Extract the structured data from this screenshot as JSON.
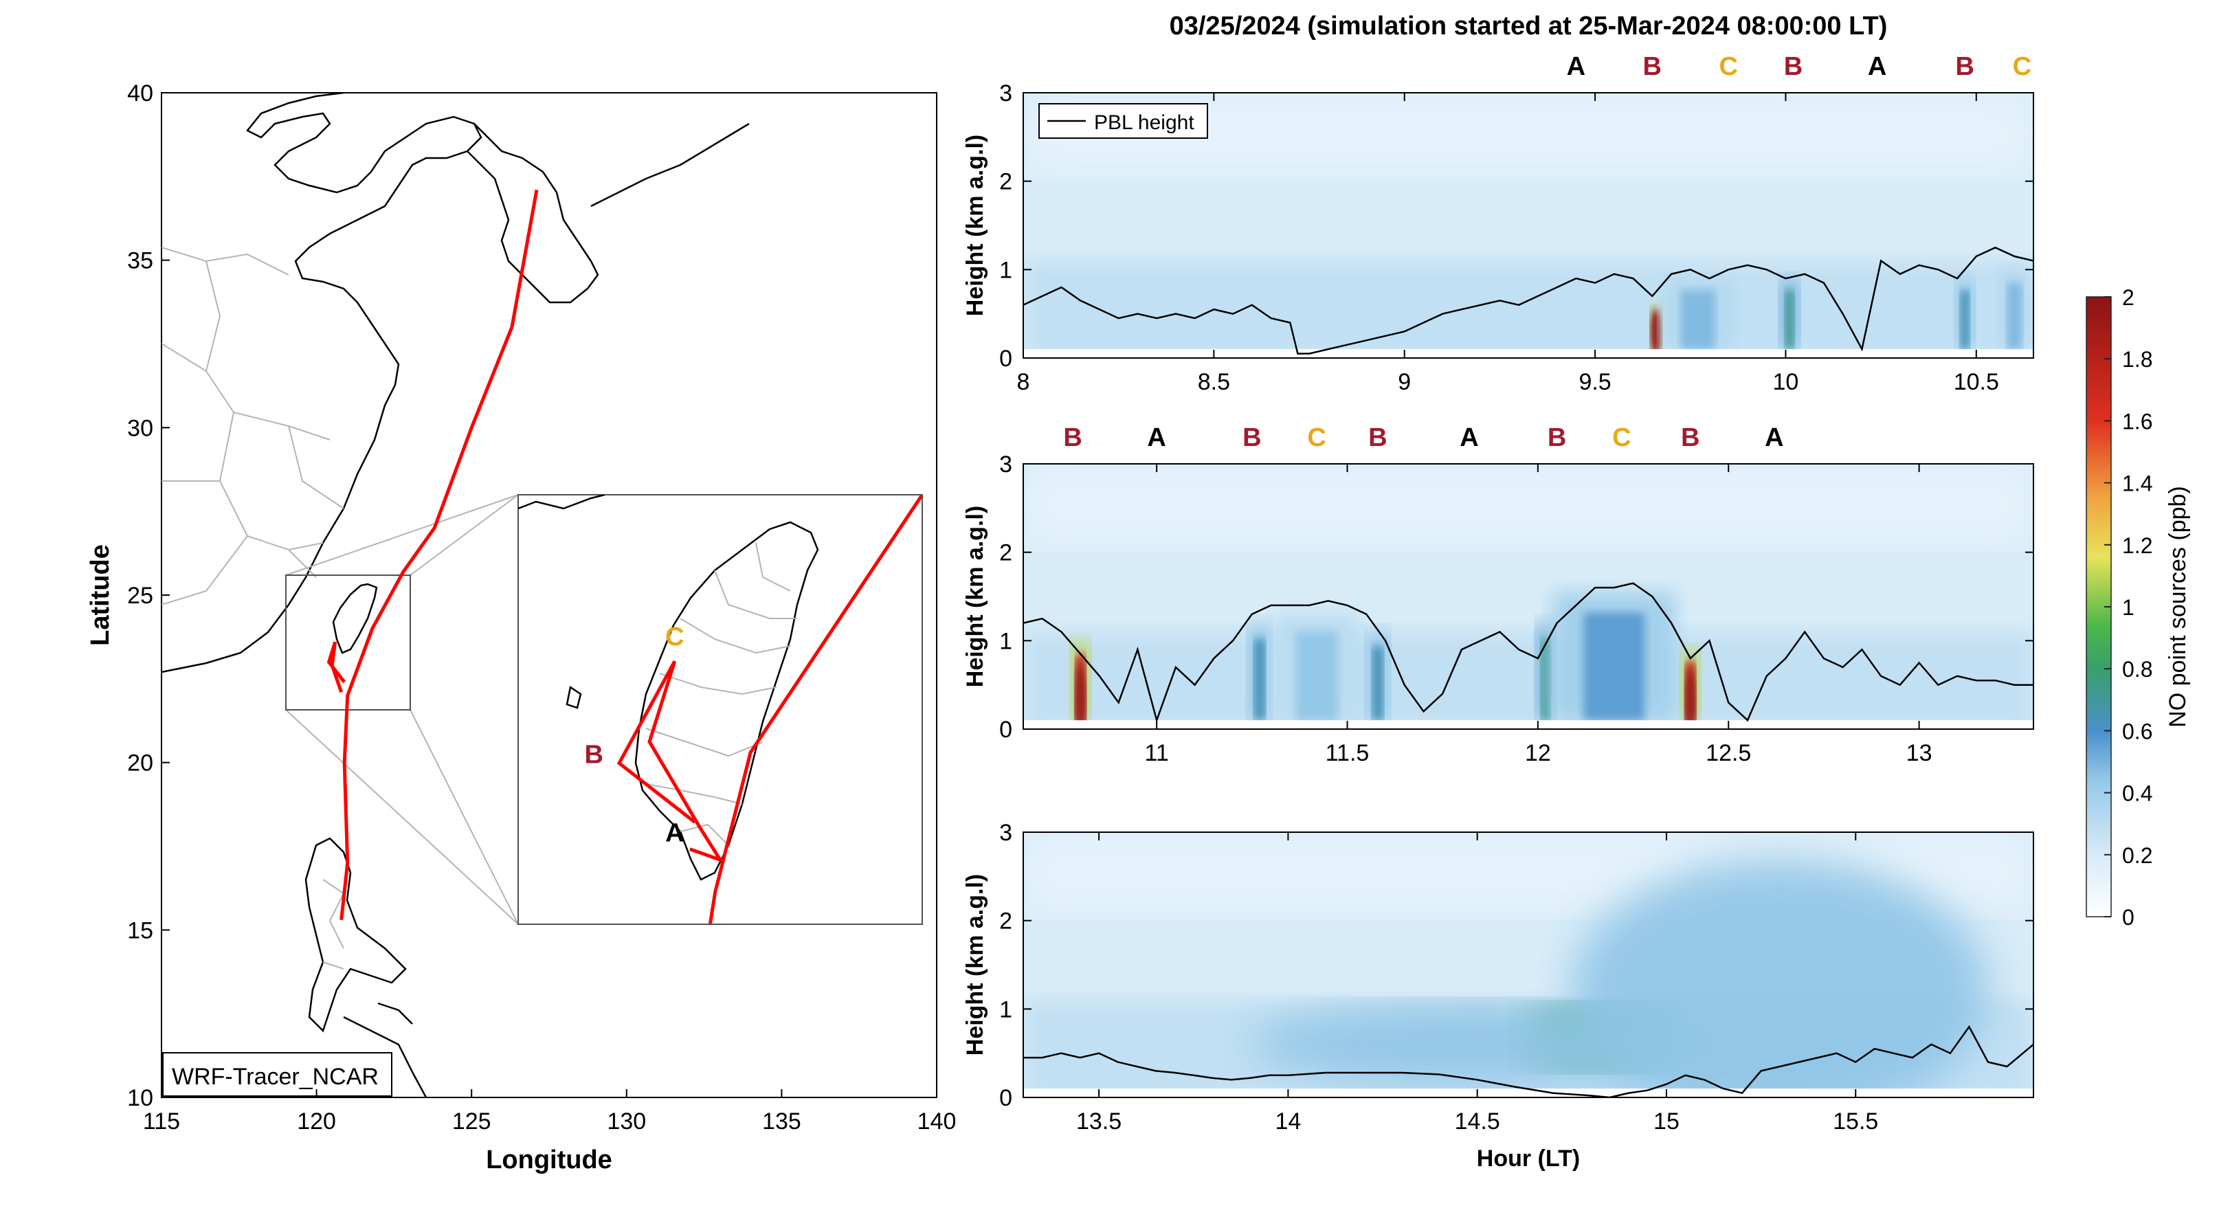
{
  "title": "03/25/2024 (simulation started at 25-Mar-2024 08:00:00 LT)",
  "colors": {
    "letter_A": "#000000",
    "letter_B": "#a31a2c",
    "letter_C": "#e8a815",
    "track": "#ff0000",
    "pbl": "#000000"
  },
  "map": {
    "xlabel": "Longitude",
    "ylabel": "Latitude",
    "xticks": [
      "115",
      "120",
      "125",
      "130",
      "135",
      "140"
    ],
    "yticks": [
      "10",
      "15",
      "20",
      "25",
      "30",
      "35",
      "40"
    ],
    "xlim": [
      115,
      140
    ],
    "ylim": [
      10,
      40
    ],
    "model_label": "WRF-Tracer_NCAR",
    "track_main": [
      [
        127.1,
        37.1
      ],
      [
        126.3,
        33.0
      ],
      [
        125.0,
        30.0
      ],
      [
        123.8,
        27.0
      ],
      [
        122.8,
        25.7
      ],
      [
        121.8,
        24.0
      ],
      [
        121.0,
        22.0
      ],
      [
        120.9,
        20.0
      ],
      [
        121.0,
        17.0
      ],
      [
        120.8,
        15.3
      ]
    ],
    "track_taiwan_loop": [
      [
        120.9,
        22.4
      ],
      [
        120.4,
        23.0
      ],
      [
        120.6,
        23.6
      ],
      [
        120.5,
        22.9
      ],
      [
        120.8,
        22.1
      ]
    ],
    "inset_region": {
      "lon": [
        119.0,
        123.0
      ],
      "lat": [
        21.5,
        25.5
      ]
    },
    "inset_labels": [
      {
        "id": "A",
        "text": "A",
        "lon": 120.55,
        "lat": 22.27
      },
      {
        "id": "B",
        "text": "B",
        "lon": 119.75,
        "lat": 23.0
      },
      {
        "id": "C",
        "text": "C",
        "lon": 120.55,
        "lat": 24.1
      }
    ]
  },
  "chart_data": [
    {
      "type": "heatmap",
      "panel": "top",
      "xlim": [
        8.0,
        10.65
      ],
      "ylim": [
        0,
        3
      ],
      "xticks": [
        "8",
        "8.5",
        "9",
        "9.5",
        "10",
        "10.5"
      ],
      "yticks": [
        "0",
        "1",
        "2",
        "3"
      ],
      "ylabel": "Height (km a.g.l)",
      "legend": "PBL height",
      "site_labels": [
        {
          "text": "A",
          "x": 9.45
        },
        {
          "text": "B",
          "x": 9.65
        },
        {
          "text": "C",
          "x": 9.85
        },
        {
          "text": "B",
          "x": 10.02
        },
        {
          "text": "A",
          "x": 10.24
        },
        {
          "text": "B",
          "x": 10.47
        },
        {
          "text": "C",
          "x": 10.62
        }
      ],
      "pbl_x": [
        8.0,
        8.05,
        8.1,
        8.15,
        8.2,
        8.25,
        8.3,
        8.35,
        8.4,
        8.45,
        8.5,
        8.55,
        8.6,
        8.65,
        8.7,
        8.72,
        8.75,
        8.8,
        8.85,
        8.9,
        8.95,
        9.0,
        9.05,
        9.1,
        9.15,
        9.2,
        9.25,
        9.3,
        9.35,
        9.4,
        9.45,
        9.5,
        9.55,
        9.6,
        9.65,
        9.7,
        9.75,
        9.8,
        9.85,
        9.9,
        9.95,
        10.0,
        10.05,
        10.1,
        10.15,
        10.2,
        10.25,
        10.3,
        10.35,
        10.4,
        10.45,
        10.5,
        10.55,
        10.6,
        10.65
      ],
      "pbl_y": [
        0.6,
        0.7,
        0.8,
        0.65,
        0.55,
        0.45,
        0.5,
        0.45,
        0.5,
        0.45,
        0.55,
        0.5,
        0.6,
        0.45,
        0.4,
        0.05,
        0.05,
        0.1,
        0.15,
        0.2,
        0.25,
        0.3,
        0.4,
        0.5,
        0.55,
        0.6,
        0.65,
        0.6,
        0.7,
        0.8,
        0.9,
        0.85,
        0.95,
        0.9,
        0.7,
        0.95,
        1.0,
        0.9,
        1.0,
        1.05,
        1.0,
        0.9,
        0.95,
        0.85,
        0.5,
        0.1,
        1.1,
        0.95,
        1.05,
        1.0,
        0.9,
        1.15,
        1.25,
        1.15,
        1.1
      ],
      "plumes": [
        {
          "x": 9.66,
          "width": 0.03,
          "height": 0.6,
          "peak": 2.0
        },
        {
          "x": 9.77,
          "width": 0.18,
          "height": 0.9,
          "peak": 0.6
        },
        {
          "x": 10.01,
          "width": 0.05,
          "height": 0.9,
          "peak": 0.9
        },
        {
          "x": 10.47,
          "width": 0.05,
          "height": 0.9,
          "peak": 0.8
        },
        {
          "x": 10.6,
          "width": 0.08,
          "height": 1.0,
          "peak": 0.6
        }
      ]
    },
    {
      "type": "heatmap",
      "panel": "middle",
      "xlim": [
        10.65,
        13.3
      ],
      "ylim": [
        0,
        3
      ],
      "xticks": [
        "11",
        "11.5",
        "12",
        "12.5",
        "13"
      ],
      "yticks": [
        "0",
        "1",
        "2",
        "3"
      ],
      "ylabel": "Height (km a.g.l)",
      "site_labels": [
        {
          "text": "B",
          "x": 10.78
        },
        {
          "text": "A",
          "x": 11.0
        },
        {
          "text": "B",
          "x": 11.25
        },
        {
          "text": "C",
          "x": 11.42
        },
        {
          "text": "B",
          "x": 11.58
        },
        {
          "text": "A",
          "x": 11.82
        },
        {
          "text": "B",
          "x": 12.05
        },
        {
          "text": "C",
          "x": 12.22
        },
        {
          "text": "B",
          "x": 12.4
        },
        {
          "text": "A",
          "x": 12.62
        }
      ],
      "pbl_x": [
        10.65,
        10.7,
        10.75,
        10.8,
        10.85,
        10.9,
        10.95,
        11.0,
        11.05,
        11.1,
        11.15,
        11.2,
        11.25,
        11.3,
        11.35,
        11.4,
        11.45,
        11.5,
        11.55,
        11.6,
        11.65,
        11.7,
        11.75,
        11.8,
        11.85,
        11.9,
        11.95,
        12.0,
        12.05,
        12.1,
        12.15,
        12.2,
        12.25,
        12.3,
        12.35,
        12.4,
        12.45,
        12.5,
        12.55,
        12.6,
        12.65,
        12.7,
        12.75,
        12.8,
        12.85,
        12.9,
        12.95,
        13.0,
        13.05,
        13.1,
        13.15,
        13.2,
        13.25,
        13.3
      ],
      "pbl_y": [
        1.2,
        1.25,
        1.1,
        0.85,
        0.6,
        0.3,
        0.9,
        0.1,
        0.7,
        0.5,
        0.8,
        1.0,
        1.3,
        1.4,
        1.4,
        1.4,
        1.45,
        1.4,
        1.3,
        1.0,
        0.5,
        0.2,
        0.4,
        0.9,
        1.0,
        1.1,
        0.9,
        0.8,
        1.2,
        1.4,
        1.6,
        1.6,
        1.65,
        1.5,
        1.2,
        0.8,
        1.0,
        0.3,
        0.1,
        0.6,
        0.8,
        1.1,
        0.8,
        0.7,
        0.9,
        0.6,
        0.5,
        0.75,
        0.5,
        0.6,
        0.55,
        0.55,
        0.5,
        0.5
      ],
      "plumes": [
        {
          "x": 10.8,
          "width": 0.05,
          "height": 1.0,
          "peak": 2.0
        },
        {
          "x": 11.27,
          "width": 0.06,
          "height": 1.2,
          "peak": 0.8
        },
        {
          "x": 11.42,
          "width": 0.22,
          "height": 1.3,
          "peak": 0.55
        },
        {
          "x": 11.58,
          "width": 0.06,
          "height": 1.1,
          "peak": 0.8
        },
        {
          "x": 12.02,
          "width": 0.05,
          "height": 1.2,
          "peak": 0.9
        },
        {
          "x": 12.2,
          "width": 0.32,
          "height": 1.55,
          "peak": 0.7
        },
        {
          "x": 12.4,
          "width": 0.05,
          "height": 0.9,
          "peak": 2.0
        }
      ]
    },
    {
      "type": "heatmap",
      "panel": "bottom",
      "xlim": [
        13.3,
        15.97
      ],
      "ylim": [
        0,
        3
      ],
      "xticks": [
        "13.5",
        "14",
        "14.5",
        "15",
        "15.5"
      ],
      "yticks": [
        "0",
        "1",
        "2",
        "3"
      ],
      "xlabel": "Hour (LT)",
      "ylabel": "Height (km a.g.l)",
      "pbl_x": [
        13.3,
        13.35,
        13.4,
        13.45,
        13.5,
        13.55,
        13.6,
        13.65,
        13.7,
        13.75,
        13.8,
        13.85,
        13.9,
        13.95,
        14.0,
        14.1,
        14.2,
        14.3,
        14.4,
        14.5,
        14.6,
        14.7,
        14.8,
        14.85,
        14.9,
        14.95,
        15.0,
        15.05,
        15.1,
        15.15,
        15.2,
        15.25,
        15.3,
        15.35,
        15.4,
        15.45,
        15.5,
        15.55,
        15.6,
        15.65,
        15.7,
        15.75,
        15.8,
        15.85,
        15.9,
        15.97
      ],
      "pbl_y": [
        0.45,
        0.45,
        0.5,
        0.45,
        0.5,
        0.4,
        0.35,
        0.3,
        0.28,
        0.25,
        0.22,
        0.2,
        0.22,
        0.25,
        0.25,
        0.28,
        0.28,
        0.28,
        0.26,
        0.2,
        0.12,
        0.05,
        0.02,
        0.0,
        0.05,
        0.08,
        0.15,
        0.25,
        0.2,
        0.1,
        0.05,
        0.3,
        0.35,
        0.4,
        0.45,
        0.5,
        0.4,
        0.55,
        0.5,
        0.45,
        0.6,
        0.5,
        0.8,
        0.4,
        0.35,
        0.6
      ],
      "blobs": [
        {
          "x": 14.82,
          "y": 0.68,
          "rx": 0.2,
          "ry": 0.35,
          "peak": 0.8
        },
        {
          "x": 15.3,
          "y": 1.2,
          "rx": 0.55,
          "ry": 1.5,
          "peak": 0.45
        },
        {
          "x": 14.5,
          "y": 0.6,
          "rx": 0.6,
          "ry": 0.45,
          "peak": 0.45
        }
      ]
    }
  ],
  "colorbar": {
    "label": "NO point sources (ppb)",
    "ticks": [
      "0",
      "0.2",
      "0.4",
      "0.6",
      "0.8",
      "1",
      "1.2",
      "1.4",
      "1.6",
      "1.8",
      "2"
    ],
    "range": [
      0,
      2
    ]
  }
}
